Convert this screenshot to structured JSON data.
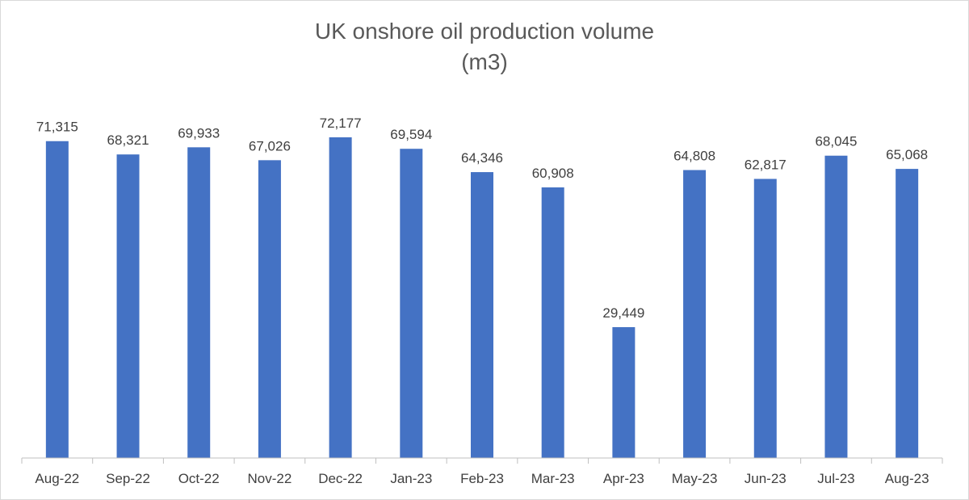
{
  "chart_data": {
    "type": "bar",
    "title": "UK onshore oil production volume",
    "subtitle": "(m3)",
    "xlabel": "",
    "ylabel": "",
    "ylim": [
      0,
      80000
    ],
    "grid": false,
    "legend": "none",
    "bar_color": "#4472C4",
    "categories": [
      "Aug-22",
      "Sep-22",
      "Oct-22",
      "Nov-22",
      "Dec-22",
      "Jan-23",
      "Feb-23",
      "Mar-23",
      "Apr-23",
      "May-23",
      "Jun-23",
      "Jul-23",
      "Aug-23"
    ],
    "values": [
      71315,
      68321,
      69933,
      67026,
      72177,
      69594,
      64346,
      60908,
      29449,
      64808,
      62817,
      68045,
      65068
    ],
    "data_labels": [
      "71,315",
      "68,321",
      "69,933",
      "67,026",
      "72,177",
      "69,594",
      "64,346",
      "60,908",
      "29,449",
      "64,808",
      "62,817",
      "68,045",
      "65,068"
    ]
  }
}
